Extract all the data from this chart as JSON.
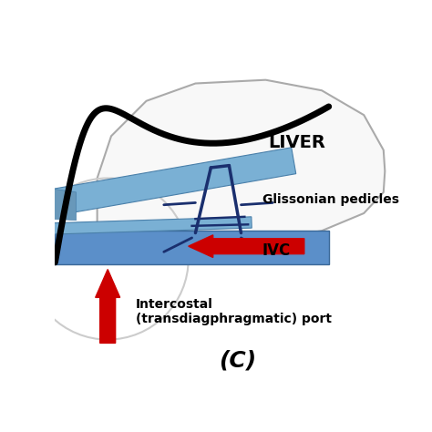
{
  "bg_color": "#ffffff",
  "title": "(C)",
  "liver_label": "LIVER",
  "pedicles_label": "Glissonian pedicles",
  "ivc_label": "IVC",
  "port_label": "Intercostal\n(transdiagphragmatic) port",
  "liver_color": "#ffffff",
  "liver_outline": "#bbbbbb",
  "ivc_color": "#5b8fc9",
  "instrument_color": "#7ab0d4",
  "instrument_dark": "#5090b8",
  "arrow_color": "#cc0000",
  "gl_color": "#1a2f6e"
}
